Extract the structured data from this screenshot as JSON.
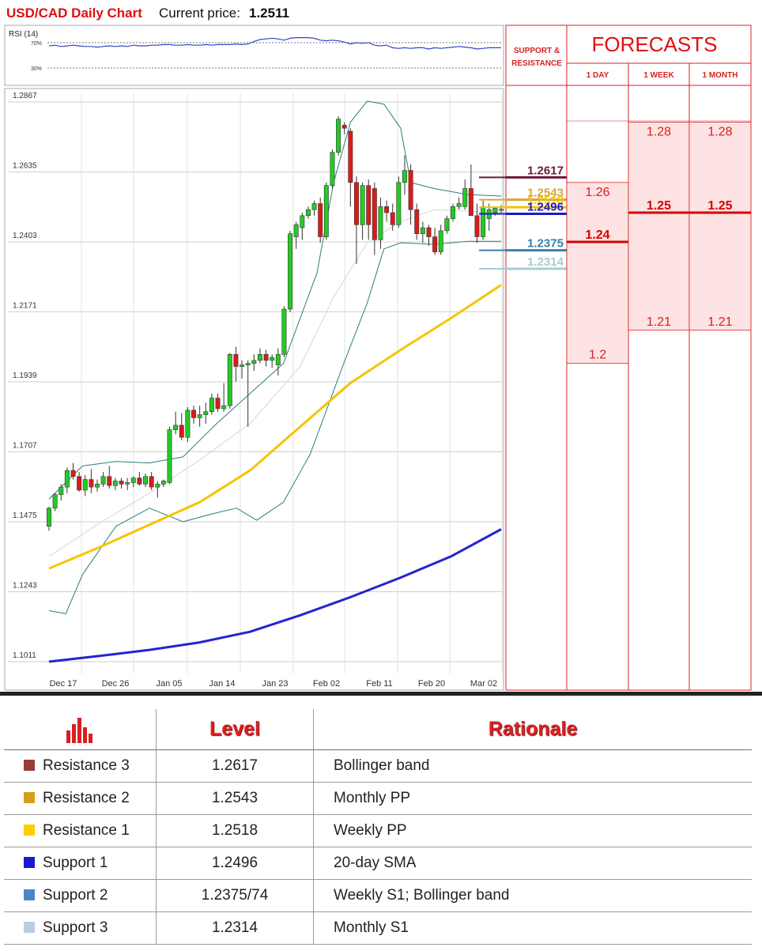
{
  "header": {
    "title": "USD/CAD Daily Chart",
    "price_label": "Current price:",
    "price_value": "1.2511"
  },
  "rsi": {
    "label": "RSI (14)",
    "levels": [
      "70%",
      "30%"
    ],
    "values": [
      65,
      66,
      64,
      65,
      66,
      65,
      64,
      64,
      63,
      64,
      65,
      64,
      65,
      64,
      66,
      65,
      65,
      66,
      66,
      67,
      67,
      66,
      66,
      67,
      66,
      66,
      67,
      66,
      67,
      67,
      67,
      68,
      67,
      68,
      72,
      75,
      76,
      77,
      76,
      74,
      77,
      78,
      78,
      78,
      77,
      74,
      73,
      74,
      73,
      71,
      68,
      70,
      69,
      70,
      66,
      65,
      66,
      62,
      61,
      62,
      61,
      62,
      62,
      60,
      62,
      61,
      62,
      63,
      64,
      63,
      62,
      60,
      61,
      62,
      62,
      62
    ]
  },
  "chart_data": {
    "type": "candlestick",
    "title": "USD/CAD Daily Chart",
    "y_ticks": [
      "1.2867",
      "1.2635",
      "1.2403",
      "1.2171",
      "1.1939",
      "1.1707",
      "1.1475",
      "1.1243",
      "1.1011"
    ],
    "ylim": [
      1.1011,
      1.2867
    ],
    "x_ticks": [
      "Dec 17",
      "Dec 26",
      "Jan 05",
      "Jan 14",
      "Jan 23",
      "Feb 02",
      "Feb 11",
      "Feb 20",
      "Mar 02"
    ],
    "candles": [
      [
        1.146,
        1.1525,
        1.1445,
        1.152
      ],
      [
        1.152,
        1.157,
        1.151,
        1.1565
      ],
      [
        1.1565,
        1.16,
        1.1545,
        1.159
      ],
      [
        1.159,
        1.1655,
        1.157,
        1.1645
      ],
      [
        1.1645,
        1.167,
        1.1615,
        1.1625
      ],
      [
        1.1625,
        1.164,
        1.1575,
        1.158
      ],
      [
        1.158,
        1.163,
        1.156,
        1.1615
      ],
      [
        1.1615,
        1.165,
        1.157,
        1.159
      ],
      [
        1.159,
        1.1615,
        1.1575,
        1.16
      ],
      [
        1.16,
        1.164,
        1.159,
        1.1625
      ],
      [
        1.1625,
        1.166,
        1.1585,
        1.1595
      ],
      [
        1.1595,
        1.162,
        1.158,
        1.161
      ],
      [
        1.161,
        1.162,
        1.1585,
        1.16
      ],
      [
        1.16,
        1.162,
        1.158,
        1.1605
      ],
      [
        1.1605,
        1.1625,
        1.159,
        1.162
      ],
      [
        1.162,
        1.164,
        1.1595,
        1.16
      ],
      [
        1.16,
        1.1635,
        1.159,
        1.1625
      ],
      [
        1.1625,
        1.164,
        1.158,
        1.159
      ],
      [
        1.159,
        1.161,
        1.1555,
        1.16
      ],
      [
        1.16,
        1.1615,
        1.159,
        1.161
      ],
      [
        1.1605,
        1.179,
        1.16,
        1.178
      ],
      [
        1.178,
        1.184,
        1.1765,
        1.1795
      ],
      [
        1.1795,
        1.1835,
        1.1745,
        1.1755
      ],
      [
        1.1755,
        1.1855,
        1.174,
        1.1845
      ],
      [
        1.1845,
        1.186,
        1.18,
        1.182
      ],
      [
        1.182,
        1.186,
        1.179,
        1.183
      ],
      [
        1.183,
        1.187,
        1.18,
        1.184
      ],
      [
        1.184,
        1.19,
        1.183,
        1.1885
      ],
      [
        1.1885,
        1.19,
        1.184,
        1.185
      ],
      [
        1.185,
        1.1935,
        1.184,
        1.186
      ],
      [
        1.186,
        1.2035,
        1.185,
        1.203
      ],
      [
        1.203,
        1.2055,
        1.194,
        1.199
      ],
      [
        1.199,
        1.201,
        1.195,
        1.1995
      ],
      [
        1.1995,
        1.201,
        1.179,
        1.2
      ],
      [
        1.2,
        1.203,
        1.1975,
        1.201
      ],
      [
        1.201,
        1.205,
        1.2,
        1.203
      ],
      [
        1.203,
        1.2045,
        1.199,
        1.201
      ],
      [
        1.201,
        1.203,
        1.1985,
        1.202
      ],
      [
        1.1995,
        1.205,
        1.196,
        1.203
      ],
      [
        1.203,
        1.219,
        1.202,
        1.218
      ],
      [
        1.218,
        1.244,
        1.217,
        1.243
      ],
      [
        1.242,
        1.247,
        1.238,
        1.246
      ],
      [
        1.245,
        1.25,
        1.241,
        1.249
      ],
      [
        1.249,
        1.252,
        1.248,
        1.251
      ],
      [
        1.251,
        1.254,
        1.249,
        1.253
      ],
      [
        1.253,
        1.255,
        1.24,
        1.242
      ],
      [
        1.242,
        1.26,
        1.241,
        1.259
      ],
      [
        1.259,
        1.271,
        1.258,
        1.27
      ],
      [
        1.27,
        1.282,
        1.269,
        1.281
      ],
      [
        1.279,
        1.28,
        1.276,
        1.278
      ],
      [
        1.277,
        1.278,
        1.252,
        1.26
      ],
      [
        1.26,
        1.262,
        1.233,
        1.246
      ],
      [
        1.246,
        1.26,
        1.241,
        1.259
      ],
      [
        1.259,
        1.261,
        1.241,
        1.246
      ],
      [
        1.258,
        1.26,
        1.236,
        1.241
      ],
      [
        1.241,
        1.255,
        1.238,
        1.252
      ],
      [
        1.252,
        1.254,
        1.247,
        1.25
      ],
      [
        1.25,
        1.253,
        1.244,
        1.246
      ],
      [
        1.246,
        1.262,
        1.245,
        1.26
      ],
      [
        1.26,
        1.269,
        1.256,
        1.264
      ],
      [
        1.264,
        1.266,
        1.246,
        1.251
      ],
      [
        1.251,
        1.253,
        1.241,
        1.243
      ],
      [
        1.243,
        1.247,
        1.24,
        1.245
      ],
      [
        1.245,
        1.246,
        1.239,
        1.242
      ],
      [
        1.242,
        1.245,
        1.236,
        1.237
      ],
      [
        1.237,
        1.246,
        1.236,
        1.244
      ],
      [
        1.244,
        1.249,
        1.243,
        1.248
      ],
      [
        1.248,
        1.253,
        1.247,
        1.252
      ],
      [
        1.252,
        1.255,
        1.251,
        1.253
      ],
      [
        1.252,
        1.261,
        1.251,
        1.258
      ],
      [
        1.258,
        1.266,
        1.249,
        1.249
      ],
      [
        1.249,
        1.253,
        1.24,
        1.242
      ],
      [
        1.242,
        1.254,
        1.241,
        1.252
      ],
      [
        1.248,
        1.253,
        1.244,
        1.251
      ],
      [
        1.25,
        1.252,
        1.249,
        1.2515
      ],
      [
        1.2511,
        1.2525,
        1.25,
        1.2511
      ]
    ],
    "moving_average_50": [
      [
        0,
        1.132
      ],
      [
        15,
        1.139
      ],
      [
        30,
        1.1465
      ],
      [
        45,
        1.154
      ],
      [
        60,
        1.1645
      ],
      [
        75,
        1.179
      ],
      [
        90,
        1.1935
      ],
      [
        105,
        1.2045
      ],
      [
        120,
        1.215
      ],
      [
        135,
        1.226
      ]
    ],
    "moving_average_200": [
      [
        0,
        1.1011
      ],
      [
        15,
        1.103
      ],
      [
        30,
        1.105
      ],
      [
        45,
        1.1075
      ],
      [
        60,
        1.111
      ],
      [
        75,
        1.1165
      ],
      [
        90,
        1.1225
      ],
      [
        105,
        1.129
      ],
      [
        120,
        1.136
      ],
      [
        135,
        1.145
      ]
    ],
    "bollinger_upper": [
      [
        0,
        1.155
      ],
      [
        10,
        1.166
      ],
      [
        20,
        1.1675
      ],
      [
        30,
        1.167
      ],
      [
        40,
        1.169
      ],
      [
        50,
        1.18
      ],
      [
        60,
        1.19
      ],
      [
        70,
        1.2
      ],
      [
        80,
        1.23
      ],
      [
        85,
        1.26
      ],
      [
        90,
        1.28
      ],
      [
        95,
        1.287
      ],
      [
        100,
        1.286
      ],
      [
        105,
        1.278
      ],
      [
        108,
        1.26
      ],
      [
        115,
        1.258
      ],
      [
        125,
        1.256
      ],
      [
        135,
        1.2555
      ]
    ],
    "bollinger_lower": [
      [
        0,
        1.118
      ],
      [
        5,
        1.117
      ],
      [
        10,
        1.13
      ],
      [
        20,
        1.146
      ],
      [
        30,
        1.152
      ],
      [
        40,
        1.1475
      ],
      [
        50,
        1.1505
      ],
      [
        56,
        1.152
      ],
      [
        62,
        1.148
      ],
      [
        70,
        1.154
      ],
      [
        78,
        1.17
      ],
      [
        88,
        1.2
      ],
      [
        95,
        1.22
      ],
      [
        100,
        1.238
      ],
      [
        105,
        1.24
      ],
      [
        115,
        1.2395
      ],
      [
        125,
        1.2405
      ],
      [
        135,
        1.2405
      ]
    ],
    "bollinger_middle": [
      [
        0,
        1.136
      ],
      [
        15,
        1.147
      ],
      [
        30,
        1.157
      ],
      [
        45,
        1.168
      ],
      [
        60,
        1.18
      ],
      [
        75,
        1.199
      ],
      [
        85,
        1.222
      ],
      [
        95,
        1.24
      ],
      [
        105,
        1.247
      ],
      [
        115,
        1.251
      ],
      [
        125,
        1.2505
      ],
      [
        135,
        1.25
      ]
    ],
    "levels": [
      {
        "label": "1.2617",
        "value": 1.2617,
        "color": "#6b1a3a"
      },
      {
        "label": "1.2543",
        "value": 1.2543,
        "color": "#d4a838"
      },
      {
        "label": "1.2518",
        "value": 1.2518,
        "color": "#f2c500"
      },
      {
        "label": "1.2496",
        "value": 1.2496,
        "color": "#1a1acc"
      },
      {
        "label": "1.2375",
        "value": 1.2375,
        "color": "#3a7fa8"
      },
      {
        "label": "1.2314",
        "value": 1.2314,
        "color": "#a8ccd2"
      }
    ]
  },
  "support_resistance_header": "SUPPORT & RESISTANCE",
  "forecasts": {
    "title": "FORECASTS",
    "columns": [
      {
        "label": "1 DAY",
        "high": "1.26",
        "mid": "1.24",
        "low": "1.2",
        "high_value": 1.26,
        "mid_value": 1.2403,
        "low_value": 1.2
      },
      {
        "label": "1 WEEK",
        "high": "1.28",
        "mid": "1.25",
        "low": "1.21",
        "high_value": 1.28,
        "mid_value": 1.25,
        "low_value": 1.211
      },
      {
        "label": "1 MONTH",
        "high": "1.28",
        "mid": "1.25",
        "low": "1.21",
        "high_value": 1.28,
        "mid_value": 1.25,
        "low_value": 1.211
      }
    ]
  },
  "table": {
    "headers": {
      "level": "Level",
      "rationale": "Rationale"
    },
    "rows": [
      {
        "name": "Resistance 3",
        "level": "1.2617",
        "rationale": "Bollinger band",
        "color": "#9a3a3a"
      },
      {
        "name": "Resistance 2",
        "level": "1.2543",
        "rationale": "Monthly PP",
        "color": "#d4a017"
      },
      {
        "name": "Resistance 1",
        "level": "1.2518",
        "rationale": "Weekly PP",
        "color": "#ffcc00"
      },
      {
        "name": "Support 1",
        "level": "1.2496",
        "rationale": "20-day SMA",
        "color": "#1a1acc"
      },
      {
        "name": "Support 2",
        "level": "1.2375/74",
        "rationale": "Weekly S1; Bollinger band",
        "color": "#4a86c8"
      },
      {
        "name": "Support 3",
        "level": "1.2314",
        "rationale": "Monthly S1",
        "color": "#b8cce4"
      }
    ]
  }
}
